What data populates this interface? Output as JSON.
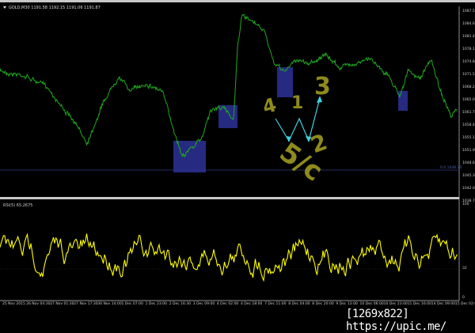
{
  "header": {
    "symbol_line": "GOLD,M30  1191.58 1192.15 1191.06 1191.87"
  },
  "price_axis": [
    "1087.50",
    "1084.68",
    "1081.45",
    "1078.11",
    "1074.86",
    "1071.58",
    "1068.21",
    "1065.01",
    "1061.71",
    "1058.46",
    "1055.18",
    "1051.93",
    "1048.61",
    "1045.36",
    "1042.06",
    "1038.75"
  ],
  "hline_label": "0.0 1048.73",
  "rsi": {
    "label": "RSI(5) 65.2675",
    "axis": [
      "100",
      "32",
      "0"
    ]
  },
  "time_axis": [
    "25 Nov 2015",
    "26 Nov 04:30",
    "27 Nov 01:30",
    "27 Nov 17:30",
    "30 Nov 14:00",
    "1 Dec 07:00",
    "1 Dec 23:00",
    "2 Dec 16:30",
    "3 Dec 09:00",
    "4 Dec 02:00",
    "4 Dec 18:00",
    "7 Dec 11:00",
    "8 Dec 04:00",
    "8 Dec 20:00",
    "9 Dec 13:00",
    "10 Dec 06:00",
    "10 Dec 23:00",
    "11 Dec 16:00",
    "14 Dec 09:00",
    "15 Dec 02:00"
  ],
  "annotations": {
    "w4": "4",
    "w1": "1",
    "w3": "3",
    "w2": "2",
    "w5c": "5/c"
  },
  "watermark": "[1269x822] https://upic.me/",
  "colors": {
    "price": "#1ea81e",
    "rsi": "#ffff00",
    "box": "#2a2f8f",
    "arrow": "#3fd0e0",
    "annotation": "#8f8a1c",
    "hline": "#2a3a80"
  }
}
